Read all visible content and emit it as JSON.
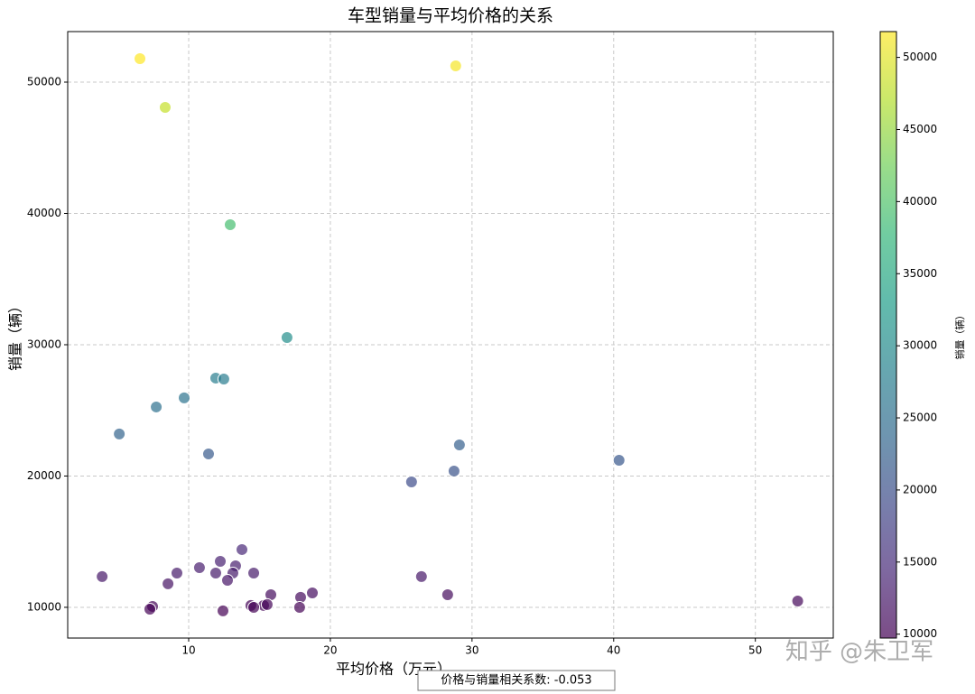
{
  "chart_data": {
    "type": "scatter",
    "title": "车型销量与平均价格的关系",
    "x_label": "平均价格（万元）",
    "y_label": "销量（辆）",
    "colorbar_label": "销量（辆）",
    "annotation": "价格与销量相关系数: -0.053",
    "watermark": "知乎 @朱卫军",
    "x": [
      6.56,
      28.85,
      8.34,
      12.93,
      16.94,
      11.91,
      12.48,
      9.68,
      7.71,
      5.1,
      11.4,
      29.11,
      28.73,
      25.73,
      40.38,
      3.89,
      13.76,
      12.23,
      13.31,
      10.76,
      9.17,
      11.91,
      13.12,
      14.59,
      12.74,
      8.54,
      26.43,
      18.73,
      15.8,
      28.28,
      17.9,
      14.39,
      15.29,
      15.54,
      14.59,
      17.83,
      7.45,
      7.26,
      12.42,
      52.99
    ],
    "y": [
      51790,
      51240,
      48080,
      39140,
      30550,
      27460,
      27390,
      25950,
      25260,
      23200,
      21680,
      22370,
      20380,
      19550,
      21200,
      12340,
      14400,
      13500,
      13160,
      13020,
      12610,
      12610,
      12610,
      12610,
      12060,
      11790,
      12340,
      11100,
      10960,
      10960,
      10760,
      10140,
      10140,
      10210,
      10000,
      10000,
      10070,
      9860,
      9730,
      10480
    ],
    "xlim": [
      1.46,
      55.5
    ],
    "ylim": [
      7660,
      53850
    ],
    "xticks": [
      10,
      20,
      30,
      40,
      50
    ],
    "yticks": [
      10000,
      20000,
      30000,
      40000,
      50000
    ],
    "clim": [
      9730,
      51790
    ],
    "cticks": [
      10000,
      15000,
      20000,
      25000,
      30000,
      35000,
      40000,
      45000,
      50000
    ],
    "colormap": [
      "#440154",
      "#482878",
      "#3e4989",
      "#31688e",
      "#26828e",
      "#1f9e89",
      "#35b779",
      "#6ece58",
      "#b5de2b",
      "#fde725"
    ],
    "alpha": 0.7,
    "grid": true
  }
}
